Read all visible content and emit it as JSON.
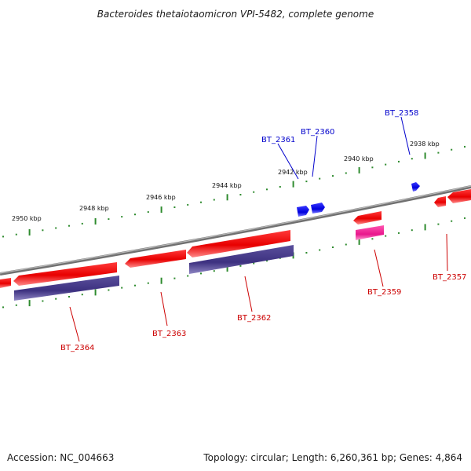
{
  "title": "Bacteroides thetaiotaomicron VPI-5482, complete genome",
  "footer": {
    "accession": "Accession: NC_004663",
    "topology": "Topology: circular; Length: 6,260,361 bp; Genes: 4,864"
  },
  "colors": {
    "backbone": "#808080",
    "forward_gene": "#0000ee",
    "reverse_gene": "#ee0000",
    "reverse_cds": "#4b3f8c",
    "highlight_cds": "#ee2e9a",
    "tick": "#2e8b2e",
    "forward_label": "#0000cc",
    "reverse_label": "#cc0000"
  },
  "scale": {
    "kbp_labels": [
      "2950 kbp",
      "2948 kbp",
      "2946 kbp",
      "2944 kbp",
      "2942 kbp",
      "2940 kbp",
      "2938 kbp"
    ]
  },
  "genes": {
    "forward": [
      "BT_2361",
      "BT_2360",
      "BT_2358"
    ],
    "reverse": [
      "BT_2364",
      "BT_2363",
      "BT_2362",
      "BT_2359",
      "BT_2357"
    ]
  }
}
